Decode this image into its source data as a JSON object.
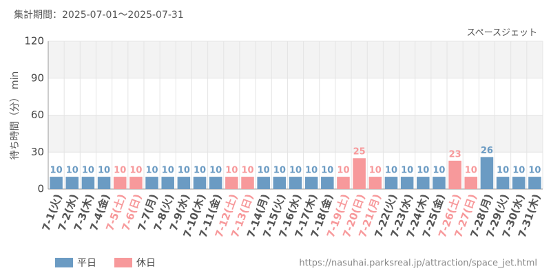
{
  "chart_data": {
    "type": "bar",
    "title": "集計期間：2025-07-01～2025-07-31",
    "subtitle": "スペースジェット",
    "y_label": "待ち時間（分） min",
    "url": "https://nasuhai.parksreal.jp/attraction/space_jet.html",
    "categories": [
      "7-1(火)",
      "7-2(水)",
      "7-3(木)",
      "7-4(金)",
      "7-5(土)",
      "7-6(日)",
      "7-7(月)",
      "7-8(火)",
      "7-9(水)",
      "7-10(木)",
      "7-11(金)",
      "7-12(土)",
      "7-13(日)",
      "7-14(月)",
      "7-15(火)",
      "7-16(水)",
      "7-17(木)",
      "7-18(金)",
      "7-19(土)",
      "7-20(日)",
      "7-21(月)",
      "7-22(火)",
      "7-23(水)",
      "7-24(木)",
      "7-25(金)",
      "7-26(土)",
      "7-27(日)",
      "7-28(月)",
      "7-29(火)",
      "7-30(水)",
      "7-31(木)"
    ],
    "series": [
      {
        "name": "平日",
        "color": "#6b9bc3",
        "values": [
          10,
          10,
          10,
          10,
          null,
          null,
          10,
          10,
          10,
          10,
          10,
          null,
          null,
          10,
          10,
          10,
          10,
          10,
          null,
          null,
          null,
          10,
          10,
          10,
          10,
          null,
          null,
          26,
          10,
          10,
          10
        ]
      },
      {
        "name": "休日",
        "color": "#f7999b",
        "values": [
          null,
          null,
          null,
          null,
          10,
          10,
          null,
          null,
          null,
          null,
          null,
          10,
          10,
          null,
          null,
          null,
          null,
          null,
          10,
          25,
          10,
          null,
          null,
          null,
          null,
          23,
          10,
          null,
          null,
          null,
          null
        ]
      }
    ],
    "ylim": [
      0,
      120
    ],
    "yticks": [
      0,
      30,
      60,
      90,
      120
    ],
    "grid": true
  }
}
